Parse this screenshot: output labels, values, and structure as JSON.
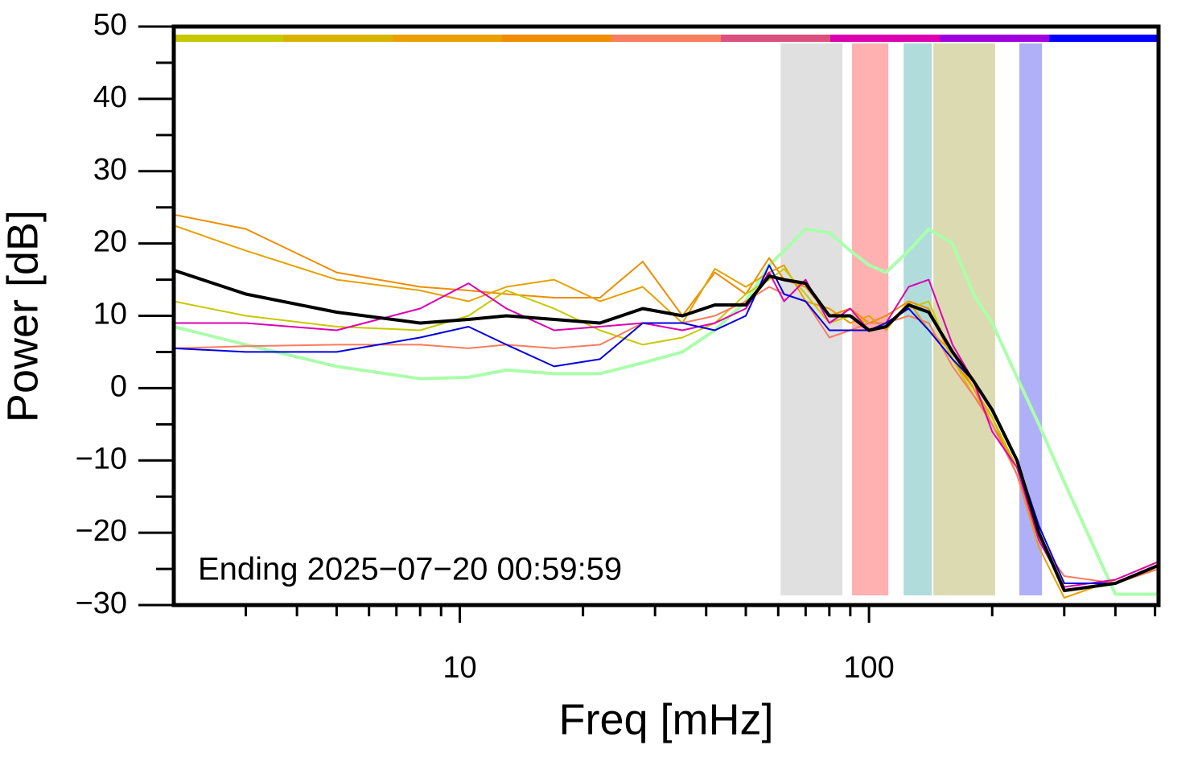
{
  "chart_data": {
    "type": "line",
    "xlabel": "Freq [mHz]",
    "ylabel": "Power [dB]",
    "annotation": "Ending 2025−07−20 00:59:59",
    "xscale": "log",
    "xlim": [
      2,
      510
    ],
    "ylim": [
      -30,
      50
    ],
    "xticks": [
      10,
      100
    ],
    "xminor_ticks": [
      3,
      4,
      5,
      6,
      7,
      8,
      9,
      20,
      30,
      40,
      50,
      60,
      70,
      80,
      90,
      200,
      300,
      400,
      500
    ],
    "yticks": [
      {
        "value": -30,
        "label": "−30"
      },
      {
        "value": -20,
        "label": "−20"
      },
      {
        "value": -10,
        "label": "−10"
      },
      0,
      10,
      20,
      30,
      40,
      50
    ],
    "yminor_ticks": [
      -25,
      -15,
      -5,
      5,
      15,
      25,
      35,
      45
    ],
    "top_bar_colors": [
      "#c8c800",
      "#d8b400",
      "#eaa000",
      "#f28c00",
      "#f87c60",
      "#dc5080",
      "#dc00b0",
      "#a000e0",
      "#0000ff"
    ],
    "bands": [
      {
        "x": [
          60.8,
          86.1
        ],
        "color": "#e0e0e0"
      },
      {
        "x": [
          90.9,
          111.5
        ],
        "color": "#ffb0b0"
      },
      {
        "x": [
          121.5,
          142.4
        ],
        "color": "#b0dcdc"
      },
      {
        "x": [
          143.6,
          203.4
        ],
        "color": "#dcdab0"
      },
      {
        "x": [
          233,
          264.7
        ],
        "color": "#b0b0f8"
      }
    ],
    "x": [
      2,
      3,
      5,
      8,
      10.5,
      13,
      17,
      22,
      28,
      35,
      42,
      50,
      57,
      62,
      70,
      80,
      90,
      100,
      110,
      125,
      140,
      160,
      180,
      200,
      230,
      260,
      300,
      400,
      510
    ],
    "series": [
      {
        "color": "#aaffaa",
        "values": [
          8.5,
          6,
          3,
          1.3,
          1.5,
          2.5,
          2,
          2,
          3.5,
          5,
          8,
          12,
          17,
          19,
          22,
          21.5,
          19,
          17,
          16,
          19,
          22,
          20,
          13,
          9,
          1.5,
          -5,
          -13,
          -28.5,
          -28.5
        ]
      },
      {
        "color": "#f08c00",
        "values": [
          24,
          22,
          16,
          14,
          13.5,
          13,
          12.5,
          12.5,
          17.5,
          10,
          16,
          13,
          18,
          15,
          14,
          10,
          11,
          9,
          10,
          12,
          11,
          4,
          0,
          -5,
          -11,
          -20,
          -27,
          -27,
          -25
        ]
      },
      {
        "color": "#e8a000",
        "values": [
          22.5,
          19,
          15,
          13.5,
          12,
          14,
          15,
          12,
          14,
          9,
          16.5,
          14,
          16,
          17,
          12,
          11,
          9,
          10,
          8,
          12,
          8,
          5,
          0,
          -4,
          -12,
          -22,
          -29,
          -26.5,
          -24
        ]
      },
      {
        "color": "#c8c800",
        "values": [
          12,
          10,
          8.5,
          8,
          10,
          13.5,
          11,
          8,
          6,
          7,
          9,
          13,
          15,
          16.5,
          13,
          9,
          10,
          9,
          9,
          11,
          12,
          4,
          -1,
          -4,
          -11,
          -21,
          -27,
          -27,
          -25
        ]
      },
      {
        "color": "#f87c60",
        "values": [
          5.5,
          5.8,
          6,
          6,
          5.5,
          6,
          5.5,
          6,
          9,
          9,
          10,
          12,
          14,
          13,
          12,
          7,
          8,
          9,
          9,
          10,
          9,
          3,
          -1,
          -5,
          -12,
          -21,
          -26,
          -27,
          -25
        ]
      },
      {
        "color": "#dc00b0",
        "values": [
          9,
          9,
          8,
          11,
          14.5,
          11,
          8,
          8.5,
          9,
          8,
          9,
          11,
          16,
          12,
          15,
          9,
          11,
          8,
          9,
          14,
          15,
          6,
          1,
          -6,
          -11,
          -21,
          -27.5,
          -26.5,
          -24
        ]
      },
      {
        "color": "#0000e0",
        "values": [
          5.5,
          5,
          5,
          7,
          8.5,
          6,
          3,
          4,
          9,
          9,
          8,
          10,
          17,
          13,
          12,
          8,
          8,
          8,
          9,
          11,
          8,
          4,
          1,
          -3,
          -10,
          -19,
          -27,
          -27,
          -24.5
        ]
      },
      {
        "color": "#000000",
        "values": [
          16.3,
          13,
          10.5,
          9,
          9.5,
          10,
          9.5,
          9,
          11,
          10,
          11.5,
          11.5,
          15.5,
          15,
          14.5,
          10,
          10,
          8,
          8.5,
          11.5,
          10.5,
          5,
          1,
          -3,
          -10,
          -20,
          -28,
          -27,
          -24.5
        ]
      }
    ]
  }
}
